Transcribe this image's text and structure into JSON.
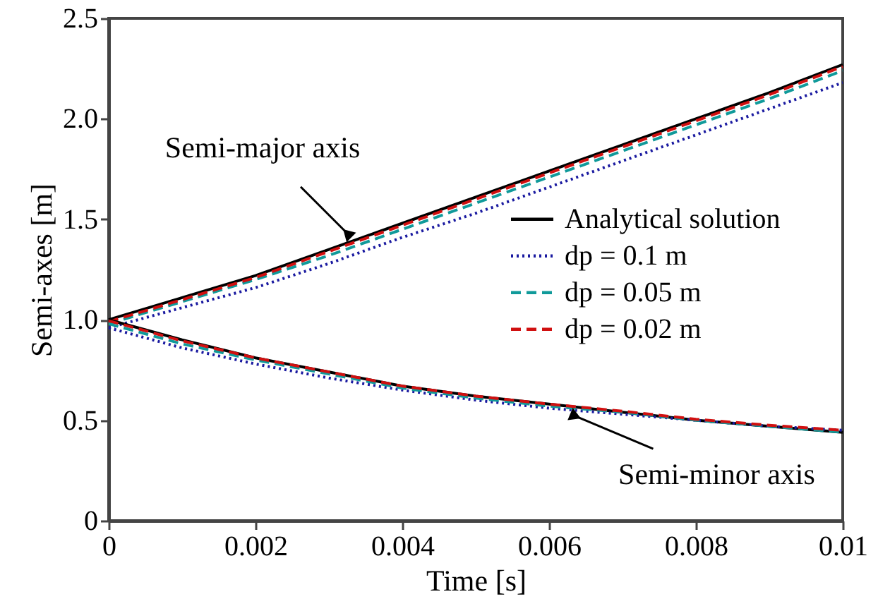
{
  "chart_data": {
    "type": "line",
    "xlabel": "Time [s]",
    "ylabel": "Semi-axes [m]",
    "x": [
      0,
      0.001,
      0.002,
      0.003,
      0.004,
      0.005,
      0.006,
      0.007,
      0.008,
      0.009,
      0.01
    ],
    "xlim": [
      0,
      0.01
    ],
    "xticks": [
      0,
      0.002,
      0.004,
      0.006,
      0.008,
      0.01
    ],
    "ylim": [
      0,
      2.5
    ],
    "yticks": [
      0,
      {
        "value": 0.5,
        "label": "0.5"
      },
      {
        "value": 1,
        "label": "1.0"
      },
      {
        "value": 1.5,
        "label": "1.5"
      },
      {
        "value": 2,
        "label": "2.0"
      },
      {
        "value": 2.5,
        "label": "2.5"
      }
    ],
    "grid": false,
    "legend": "right",
    "marker": "none",
    "series": [
      {
        "name": "Analytical solution",
        "color": "#000000",
        "line_style": "solid",
        "values": [
          1.0,
          1.11,
          1.22,
          1.35,
          1.48,
          1.61,
          1.74,
          1.87,
          2.0,
          2.13,
          2.27
        ]
      },
      {
        "name": "dp = 0.1 m",
        "color": "#1a1aa0",
        "line_style": "dotted",
        "values": [
          0.96,
          1.06,
          1.16,
          1.28,
          1.41,
          1.53,
          1.66,
          1.79,
          1.92,
          2.05,
          2.18
        ]
      },
      {
        "name": "dp = 0.05 m",
        "color": "#109a9a",
        "line_style": "dashed",
        "values": [
          0.98,
          1.09,
          1.2,
          1.32,
          1.45,
          1.58,
          1.71,
          1.84,
          1.97,
          2.1,
          2.24
        ]
      },
      {
        "name": "dp = 0.02 m",
        "color": "#d01010",
        "line_style": "dashed",
        "values": [
          0.99,
          1.1,
          1.21,
          1.34,
          1.47,
          1.6,
          1.73,
          1.86,
          1.99,
          2.12,
          2.26
        ]
      },
      {
        "color": "#000000",
        "line_style": "solid",
        "values": [
          1.0,
          0.9,
          0.81,
          0.74,
          0.67,
          0.62,
          0.58,
          0.54,
          0.5,
          0.47,
          0.44
        ]
      },
      {
        "color": "#1a1aa0",
        "line_style": "dotted",
        "values": [
          0.96,
          0.86,
          0.78,
          0.71,
          0.65,
          0.6,
          0.56,
          0.53,
          0.5,
          0.47,
          0.45
        ]
      },
      {
        "color": "#109a9a",
        "line_style": "dashed",
        "values": [
          0.98,
          0.88,
          0.8,
          0.73,
          0.66,
          0.61,
          0.57,
          0.54,
          0.5,
          0.47,
          0.44
        ]
      },
      {
        "color": "#d01010",
        "line_style": "dashed",
        "values": [
          0.995,
          0.895,
          0.81,
          0.74,
          0.67,
          0.62,
          0.58,
          0.545,
          0.505,
          0.475,
          0.45
        ]
      }
    ],
    "annotations": [
      {
        "text": "Semi-major axis",
        "x": 0.00325,
        "y": 1.43
      },
      {
        "text": "Semi-minor axis",
        "x": 0.00636,
        "y": 0.52
      }
    ]
  }
}
